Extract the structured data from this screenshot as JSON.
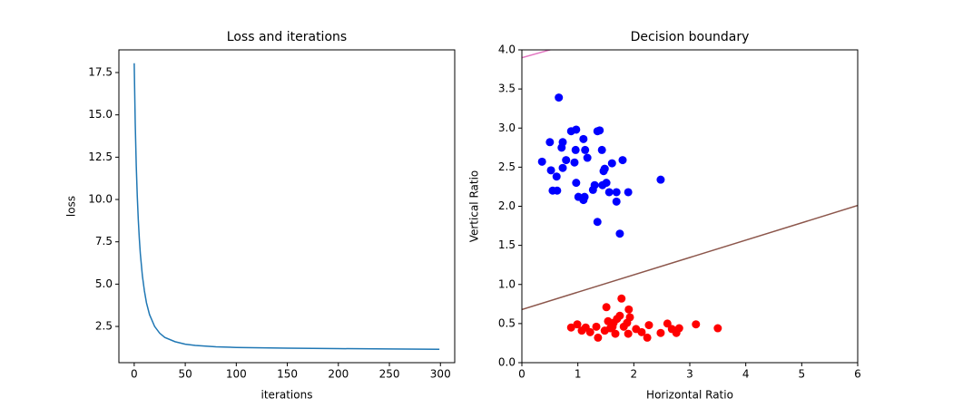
{
  "chart_data": [
    {
      "type": "line",
      "title": "Loss and iterations",
      "xlabel": "iterations",
      "ylabel": "loss",
      "x": [
        0,
        1,
        2,
        3,
        4,
        5,
        6,
        8,
        10,
        12,
        15,
        20,
        25,
        30,
        40,
        50,
        60,
        80,
        100,
        150,
        200,
        250,
        299
      ],
      "series": [
        {
          "color": "#1f77b4",
          "values": [
            18.05,
            14.5,
            12.0,
            10.2,
            8.8,
            7.7,
            6.8,
            5.5,
            4.6,
            3.9,
            3.2,
            2.5,
            2.1,
            1.85,
            1.6,
            1.45,
            1.38,
            1.3,
            1.26,
            1.22,
            1.19,
            1.17,
            1.15
          ]
        }
      ],
      "xlim": [
        -15,
        314
      ],
      "ylim": [
        0.36,
        18.84
      ],
      "xticks": [
        0,
        50,
        100,
        150,
        200,
        250,
        300
      ],
      "yticks": [
        2.5,
        {
          "value": 5,
          "label": "5.0"
        },
        7.5,
        {
          "value": 10,
          "label": "10.0"
        },
        12.5,
        {
          "value": 15,
          "label": "15.0"
        },
        17.5
      ]
    },
    {
      "type": "scatter",
      "title": "Decision boundary",
      "xlabel": "Horizontal Ratio",
      "ylabel": "Vertical Ratio",
      "series": [
        {
          "color": "#0000ff",
          "x": [
            0.66,
            0.5,
            0.73,
            0.71,
            0.88,
            0.97,
            1.35,
            1.39,
            1.1,
            0.96,
            1.13,
            1.43,
            0.36,
            0.79,
            0.94,
            1.17,
            1.61,
            1.8,
            1.48,
            1.46,
            0.73,
            0.52,
            0.62,
            0.97,
            1.51,
            1.44,
            1.3,
            1.27,
            0.55,
            0.63,
            1.56,
            1.69,
            1.9,
            2.48,
            1.01,
            1.1,
            1.12,
            1.69,
            1.35,
            1.75
          ],
          "values": [
            3.39,
            2.82,
            2.82,
            2.75,
            2.96,
            2.98,
            2.96,
            2.97,
            2.86,
            2.72,
            2.72,
            2.72,
            2.57,
            2.59,
            2.56,
            2.62,
            2.55,
            2.59,
            2.48,
            2.45,
            2.49,
            2.46,
            2.38,
            2.3,
            2.3,
            2.27,
            2.27,
            2.21,
            2.2,
            2.2,
            2.18,
            2.18,
            2.18,
            2.34,
            2.12,
            2.08,
            2.12,
            2.06,
            1.8,
            1.65
          ]
        },
        {
          "color": "#ff0000",
          "x": [
            1.78,
            1.51,
            1.91,
            0.88,
            0.99,
            1.07,
            1.14,
            1.33,
            1.36,
            1.48,
            1.54,
            1.62,
            1.67,
            1.7,
            1.75,
            1.82,
            1.88,
            1.93,
            1.9,
            2.04,
            2.14,
            2.24,
            2.27,
            2.48,
            2.6,
            2.68,
            2.76,
            2.81,
            3.11,
            3.5,
            1.58,
            1.64,
            1.22
          ],
          "values": [
            0.82,
            0.71,
            0.68,
            0.45,
            0.49,
            0.41,
            0.45,
            0.46,
            0.32,
            0.41,
            0.53,
            0.46,
            0.37,
            0.56,
            0.6,
            0.46,
            0.51,
            0.58,
            0.37,
            0.43,
            0.39,
            0.32,
            0.48,
            0.38,
            0.5,
            0.43,
            0.38,
            0.44,
            0.49,
            0.44,
            0.44,
            0.51,
            0.39
          ]
        },
        {
          "type": "line",
          "color": "#8c564b",
          "x": [
            0,
            6
          ],
          "values": [
            0.68,
            2.01
          ]
        },
        {
          "type": "line",
          "color": "#e377c2",
          "x": [
            0,
            6
          ],
          "values": [
            3.9,
            5.1
          ]
        }
      ],
      "xlim": [
        0,
        6
      ],
      "ylim": [
        0,
        4
      ],
      "xticks": [
        0,
        1,
        2,
        3,
        4,
        5,
        6
      ],
      "yticks": [
        {
          "value": 0,
          "label": "0.0"
        },
        0.5,
        {
          "value": 1,
          "label": "1.0"
        },
        1.5,
        {
          "value": 2,
          "label": "2.0"
        },
        2.5,
        {
          "value": 3,
          "label": "3.0"
        },
        3.5,
        {
          "value": 4,
          "label": "4.0"
        }
      ]
    }
  ]
}
